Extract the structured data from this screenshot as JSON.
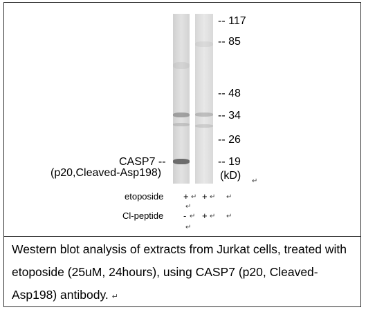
{
  "markers": [
    {
      "label": "-- 117"
    },
    {
      "label": "-- 85"
    },
    {
      "label": "-- 48"
    },
    {
      "label": "-- 34"
    },
    {
      "label": "-- 26"
    },
    {
      "label": "-- 19"
    }
  ],
  "unit_label": "(kD)",
  "protein_label": "CASP7 --",
  "protein_sublabel": "(p20,Cleaved-Asp198)",
  "conditions": [
    {
      "name": "etoposide",
      "lane1": "+",
      "lane2": "+"
    },
    {
      "name": "Cl-peptide",
      "lane1": "-",
      "lane2": "+"
    }
  ],
  "return_mark": "↵",
  "caption": "Western blot analysis of extracts from Jurkat cells, treated with etoposide (25uM, 24hours), using CASP7 (p20, Cleaved-Asp198) antibody."
}
